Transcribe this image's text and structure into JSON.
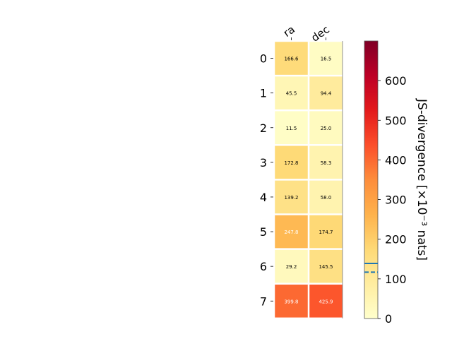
{
  "chart_data": {
    "type": "heatmap",
    "x_categories": [
      "ra",
      "dec"
    ],
    "y_categories": [
      "0",
      "1",
      "2",
      "3",
      "4",
      "5",
      "6",
      "7"
    ],
    "values": [
      [
        166.6,
        16.5
      ],
      [
        45.5,
        94.4
      ],
      [
        11.5,
        25.0
      ],
      [
        172.8,
        58.3
      ],
      [
        139.2,
        58.0
      ],
      [
        247.8,
        174.7
      ],
      [
        29.2,
        145.5
      ],
      [
        399.8,
        425.9
      ]
    ],
    "value_labels": [
      [
        "166.6",
        "16.5"
      ],
      [
        "45.5",
        "94.4"
      ],
      [
        "11.5",
        "25.0"
      ],
      [
        "172.8",
        "58.3"
      ],
      [
        "139.2",
        "58.0"
      ],
      [
        "247.8",
        "174.7"
      ],
      [
        "29.2",
        "145.5"
      ],
      [
        "399.8",
        "425.9"
      ]
    ],
    "colorbar": {
      "label": "JS-divergence [×10⁻³ nats]",
      "range": [
        0,
        700
      ],
      "ticks": [
        0,
        100,
        200,
        300,
        400,
        500,
        600
      ],
      "colormap": "YlOrRd",
      "reference_lines": [
        {
          "value": 139,
          "style": "solid",
          "color": "#1f77b4"
        },
        {
          "value": 117,
          "style": "dashed",
          "color": "#1f77b4"
        }
      ]
    },
    "grid": false
  }
}
